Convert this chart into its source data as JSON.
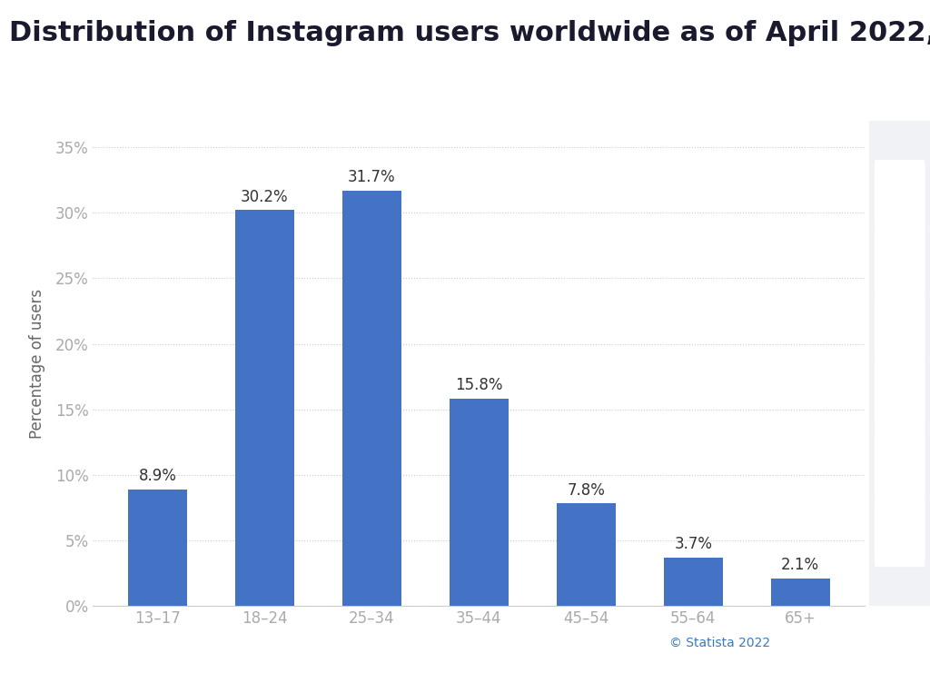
{
  "title": "Distribution of Instagram users worldwide as of April 2022,",
  "categories": [
    "13–17",
    "18–24",
    "25–34",
    "35–44",
    "45–54",
    "55–64",
    "65+"
  ],
  "values": [
    8.9,
    30.2,
    31.7,
    15.8,
    7.8,
    3.7,
    2.1
  ],
  "bar_color": "#4472c4",
  "ylabel": "Percentage of users",
  "ylim": [
    0,
    37
  ],
  "yticks": [
    0,
    5,
    10,
    15,
    20,
    25,
    30,
    35
  ],
  "ytick_labels": [
    "0%",
    "5%",
    "10%",
    "15%",
    "20%",
    "25%",
    "30%",
    "35%"
  ],
  "background_color": "#ffffff",
  "plot_bg_color": "#ffffff",
  "grid_color": "#cccccc",
  "title_fontsize": 22,
  "label_fontsize": 12,
  "tick_fontsize": 12,
  "annotation_fontsize": 12,
  "watermark": "© Statista 2022",
  "watermark_color": "#3a7abf",
  "title_color": "#1a1a2e",
  "tick_color": "#aaaaaa",
  "ylabel_color": "#666666",
  "sidebar_bg": "#f0f2f5"
}
